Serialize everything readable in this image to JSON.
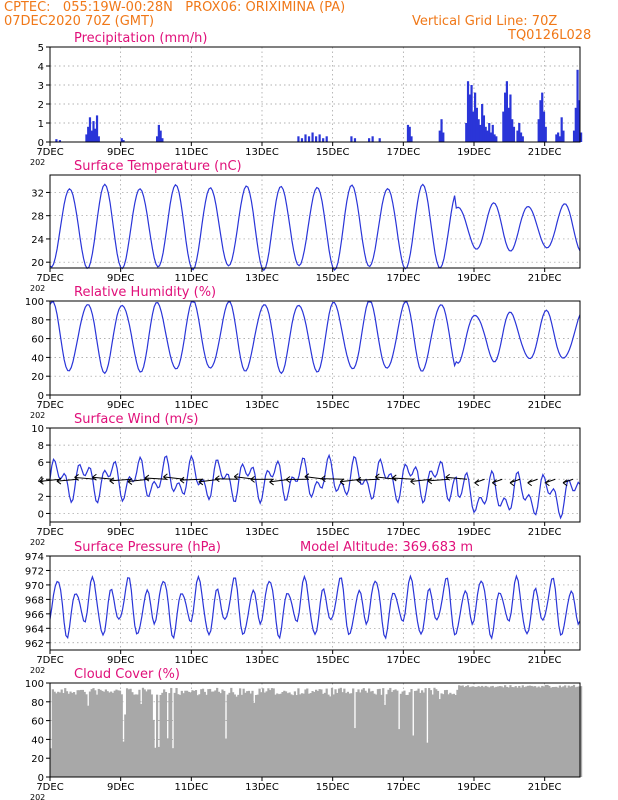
{
  "header": {
    "line1": "CPTEC:   055:19W-00:28N   PROX06: ORIXIMINA (PA)",
    "line2": "07DEC2020 70Z (GMT)",
    "right1": "Vertical Grid Line: 70Z",
    "right2": "TQ0126L028"
  },
  "colors": {
    "header": "#f07818",
    "title": "#e0107a",
    "series": "#2a35d8",
    "cloud": "#a8a8a8",
    "grid": "#999999",
    "wind_arrow": "#000000"
  },
  "x_axis": {
    "tick_labels": [
      "7DEC",
      "9DEC",
      "11DEC",
      "13DEC",
      "15DEC",
      "17DEC",
      "19DEC",
      "21DEC"
    ],
    "tick_days": [
      0,
      2,
      4,
      6,
      8,
      10,
      12,
      14
    ],
    "range_days": [
      0,
      15
    ],
    "corner_label": "202"
  },
  "chart_data": [
    {
      "type": "bar",
      "title": "Precipitation (mm/h)",
      "ylim": [
        0,
        5
      ],
      "yticks": [
        0,
        1,
        2,
        3,
        4,
        5
      ],
      "series": [
        {
          "x": [
            0.15,
            0.25,
            1.0,
            1.05,
            1.1,
            1.15,
            1.2,
            1.25,
            1.3,
            1.35,
            2.0,
            2.05,
            3.0,
            3.05,
            3.1,
            3.15,
            7.0,
            7.1,
            7.2,
            7.3,
            7.4,
            7.5,
            7.6,
            7.7,
            7.8,
            8.5,
            8.6,
            9.0,
            9.1,
            9.3,
            10.1,
            10.15,
            10.2,
            11.0,
            11.05,
            11.1,
            11.75,
            11.8,
            11.85,
            11.9,
            11.95,
            12.0,
            12.05,
            12.1,
            12.15,
            12.2,
            12.25,
            12.3,
            12.35,
            12.4,
            12.45,
            12.5,
            12.55,
            12.6,
            12.8,
            12.85,
            12.9,
            12.95,
            13.0,
            13.05,
            13.1,
            13.2,
            13.25,
            13.3,
            13.35,
            13.8,
            13.85,
            13.9,
            13.95,
            14.0,
            14.3,
            14.35,
            14.4,
            14.45,
            14.5,
            14.8,
            14.85,
            14.9,
            14.95,
            15.0
          ],
          "values": [
            0.15,
            0.1,
            0.4,
            0.8,
            1.3,
            0.6,
            1.1,
            0.7,
            1.4,
            0.3,
            0.2,
            0.1,
            0.3,
            0.9,
            0.6,
            0.2,
            0.3,
            0.2,
            0.4,
            0.3,
            0.5,
            0.3,
            0.4,
            0.2,
            0.3,
            0.3,
            0.2,
            0.2,
            0.3,
            0.2,
            0.9,
            0.8,
            0.3,
            0.6,
            1.2,
            0.5,
            1.0,
            3.2,
            2.5,
            3.0,
            1.6,
            2.6,
            1.8,
            1.2,
            0.9,
            2.0,
            1.4,
            0.8,
            0.6,
            1.0,
            0.5,
            0.9,
            0.4,
            0.3,
            1.6,
            2.6,
            3.2,
            1.8,
            2.5,
            1.2,
            0.8,
            0.6,
            1.0,
            0.5,
            0.3,
            1.2,
            2.2,
            2.6,
            1.6,
            0.8,
            0.4,
            0.5,
            0.3,
            1.3,
            0.6,
            0.6,
            1.8,
            3.8,
            2.2,
            0.5
          ]
        }
      ]
    },
    {
      "type": "line",
      "title": "Surface Temperature (nC)",
      "ylim": [
        19,
        35
      ],
      "yticks": [
        20,
        24,
        28,
        32
      ],
      "series": [
        {
          "x": [],
          "values": [],
          "params": {
            "base": 26,
            "amp": 7,
            "decay": 0.35,
            "phase": 0.52
          }
        }
      ]
    },
    {
      "type": "line",
      "title": "Relative Humidity (%)",
      "ylim": [
        0,
        100
      ],
      "yticks": [
        0,
        20,
        40,
        60,
        80,
        100
      ],
      "series": [
        {
          "x": [],
          "values": [],
          "params": {
            "base": 62,
            "amp": 36
          }
        }
      ]
    },
    {
      "type": "line",
      "title": "Surface Wind (m/s)",
      "ylim": [
        -1,
        10
      ],
      "yticks": [
        0,
        2,
        4,
        6,
        8,
        10
      ],
      "series": [
        {
          "x": [],
          "values": [],
          "params": {
            "base": 4,
            "amp": 1.6
          }
        }
      ],
      "arrow_row_y": 4
    },
    {
      "type": "line",
      "title": "Surface Pressure (hPa)",
      "annotation": "Model Altitude: 369.683 m",
      "ylim": [
        961,
        974
      ],
      "yticks": [
        962,
        964,
        966,
        968,
        970,
        972,
        974
      ],
      "series": [
        {
          "x": [],
          "values": [],
          "params": {
            "base": 967,
            "amp": 3
          }
        }
      ]
    },
    {
      "type": "area",
      "title": "Cloud Cover (%)",
      "ylim": [
        0,
        100
      ],
      "yticks": [
        0,
        20,
        40,
        60,
        80,
        100
      ],
      "series": [
        {
          "x": [],
          "values": [],
          "params": {
            "level": 95
          }
        }
      ]
    }
  ]
}
